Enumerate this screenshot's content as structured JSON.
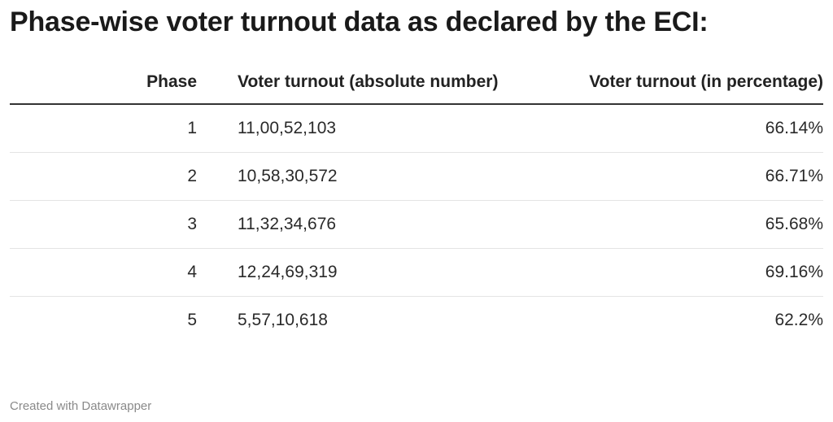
{
  "title": "Phase-wise voter turnout data as declared by the ECI:",
  "columns": [
    "Phase",
    "Voter turnout (absolute number)",
    "Voter turnout (in percentage)"
  ],
  "rows": [
    {
      "phase": "1",
      "absolute": "11,00,52,103",
      "percentage": "66.14%"
    },
    {
      "phase": "2",
      "absolute": "10,58,30,572",
      "percentage": "66.71%"
    },
    {
      "phase": "3",
      "absolute": "11,32,34,676",
      "percentage": "65.68%"
    },
    {
      "phase": "4",
      "absolute": "12,24,69,319",
      "percentage": "69.16%"
    },
    {
      "phase": "5",
      "absolute": "5,57,10,618",
      "percentage": "62.2%"
    }
  ],
  "credit": "Created with Datawrapper",
  "chart_data": {
    "type": "table",
    "title": "Phase-wise voter turnout data as declared by the ECI:",
    "columns": [
      "Phase",
      "Voter turnout (absolute number)",
      "Voter turnout (in percentage)"
    ],
    "rows": [
      [
        "1",
        "11,00,52,103",
        "66.14%"
      ],
      [
        "2",
        "10,58,30,572",
        "66.71%"
      ],
      [
        "3",
        "11,32,34,676",
        "65.68%"
      ],
      [
        "4",
        "12,24,69,319",
        "69.16%"
      ],
      [
        "5",
        "5,57,10,618",
        "62.2%"
      ]
    ]
  }
}
